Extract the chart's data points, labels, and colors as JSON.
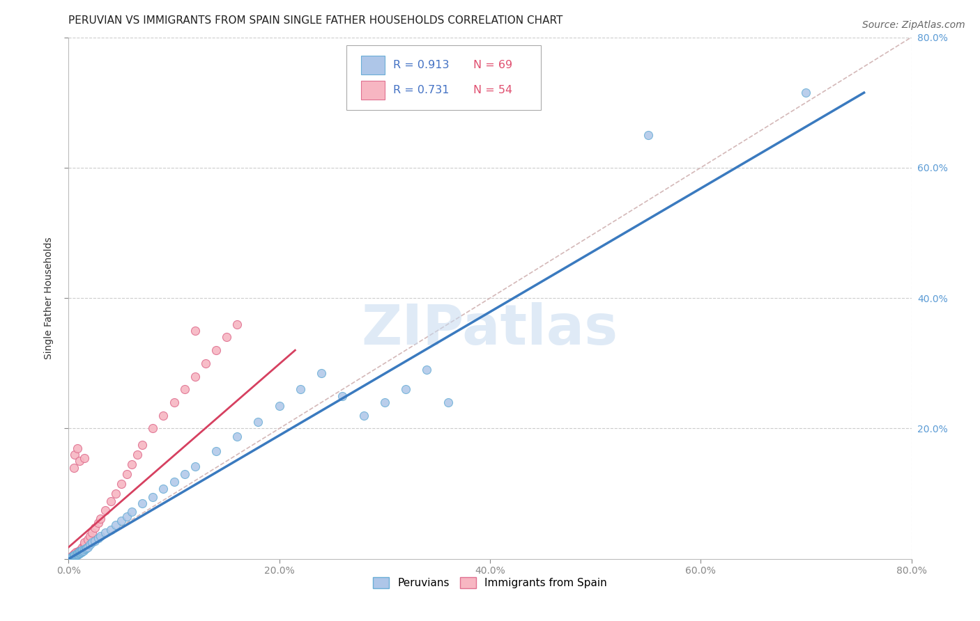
{
  "title": "PERUVIAN VS IMMIGRANTS FROM SPAIN SINGLE FATHER HOUSEHOLDS CORRELATION CHART",
  "source": "Source: ZipAtlas.com",
  "ylabel": "Single Father Households",
  "xlabel": "",
  "xlim": [
    0.0,
    0.8
  ],
  "ylim": [
    0.0,
    0.8
  ],
  "xticks": [
    0.0,
    0.2,
    0.4,
    0.6,
    0.8
  ],
  "yticks": [
    0.2,
    0.4,
    0.6,
    0.8
  ],
  "bg_color": "#ffffff",
  "grid_color": "#cccccc",
  "peruvian_color": "#aec6e8",
  "peruvian_edge_color": "#6aaed6",
  "spain_color": "#f7b6c2",
  "spain_edge_color": "#e07090",
  "peruvian_R": 0.913,
  "peruvian_N": 69,
  "spain_R": 0.731,
  "spain_N": 54,
  "peruvian_line_color": "#3a7abf",
  "spain_line_color": "#d64060",
  "diagonal_color": "#d4b8b8",
  "title_fontsize": 11,
  "label_fontsize": 10,
  "tick_fontsize": 10,
  "legend_fontsize": 11,
  "source_fontsize": 10,
  "peru_line_x0": 0.0,
  "peru_line_y0": 0.0,
  "peru_line_x1": 0.755,
  "peru_line_y1": 0.715,
  "spain_line_x0": 0.0,
  "spain_line_y0": 0.018,
  "spain_line_x1": 0.215,
  "spain_line_y1": 0.32,
  "peru_scatter_x": [
    0.002,
    0.003,
    0.003,
    0.004,
    0.004,
    0.004,
    0.005,
    0.005,
    0.005,
    0.005,
    0.005,
    0.005,
    0.005,
    0.006,
    0.006,
    0.006,
    0.007,
    0.007,
    0.008,
    0.008,
    0.008,
    0.009,
    0.009,
    0.01,
    0.01,
    0.01,
    0.01,
    0.011,
    0.011,
    0.012,
    0.012,
    0.013,
    0.013,
    0.014,
    0.015,
    0.016,
    0.017,
    0.018,
    0.02,
    0.022,
    0.025,
    0.028,
    0.03,
    0.035,
    0.04,
    0.045,
    0.05,
    0.055,
    0.06,
    0.07,
    0.08,
    0.09,
    0.1,
    0.11,
    0.12,
    0.14,
    0.16,
    0.18,
    0.2,
    0.22,
    0.24,
    0.26,
    0.28,
    0.3,
    0.32,
    0.34,
    0.36,
    0.55,
    0.7
  ],
  "peru_scatter_y": [
    0.001,
    0.002,
    0.003,
    0.002,
    0.003,
    0.004,
    0.003,
    0.003,
    0.003,
    0.004,
    0.004,
    0.005,
    0.005,
    0.004,
    0.005,
    0.006,
    0.005,
    0.006,
    0.006,
    0.007,
    0.008,
    0.007,
    0.009,
    0.008,
    0.009,
    0.01,
    0.011,
    0.009,
    0.012,
    0.01,
    0.013,
    0.012,
    0.014,
    0.013,
    0.015,
    0.016,
    0.017,
    0.018,
    0.022,
    0.025,
    0.028,
    0.032,
    0.035,
    0.04,
    0.045,
    0.052,
    0.058,
    0.065,
    0.072,
    0.085,
    0.095,
    0.108,
    0.118,
    0.13,
    0.142,
    0.165,
    0.188,
    0.21,
    0.235,
    0.26,
    0.285,
    0.25,
    0.22,
    0.24,
    0.26,
    0.29,
    0.24,
    0.65,
    0.715
  ],
  "spain_scatter_x": [
    0.001,
    0.002,
    0.002,
    0.003,
    0.003,
    0.003,
    0.004,
    0.004,
    0.005,
    0.005,
    0.005,
    0.005,
    0.006,
    0.006,
    0.007,
    0.007,
    0.008,
    0.009,
    0.01,
    0.01,
    0.011,
    0.012,
    0.013,
    0.015,
    0.015,
    0.018,
    0.02,
    0.022,
    0.025,
    0.028,
    0.03,
    0.035,
    0.04,
    0.045,
    0.05,
    0.055,
    0.06,
    0.065,
    0.07,
    0.08,
    0.09,
    0.1,
    0.11,
    0.12,
    0.13,
    0.14,
    0.15,
    0.16,
    0.005,
    0.006,
    0.008,
    0.01,
    0.015,
    0.12
  ],
  "spain_scatter_y": [
    0.001,
    0.002,
    0.003,
    0.002,
    0.004,
    0.003,
    0.003,
    0.005,
    0.004,
    0.005,
    0.006,
    0.007,
    0.006,
    0.008,
    0.007,
    0.01,
    0.009,
    0.012,
    0.01,
    0.012,
    0.014,
    0.016,
    0.018,
    0.022,
    0.025,
    0.03,
    0.035,
    0.04,
    0.048,
    0.055,
    0.062,
    0.075,
    0.088,
    0.1,
    0.115,
    0.13,
    0.145,
    0.16,
    0.175,
    0.2,
    0.22,
    0.24,
    0.26,
    0.28,
    0.3,
    0.32,
    0.34,
    0.36,
    0.14,
    0.16,
    0.17,
    0.15,
    0.155,
    0.35
  ]
}
